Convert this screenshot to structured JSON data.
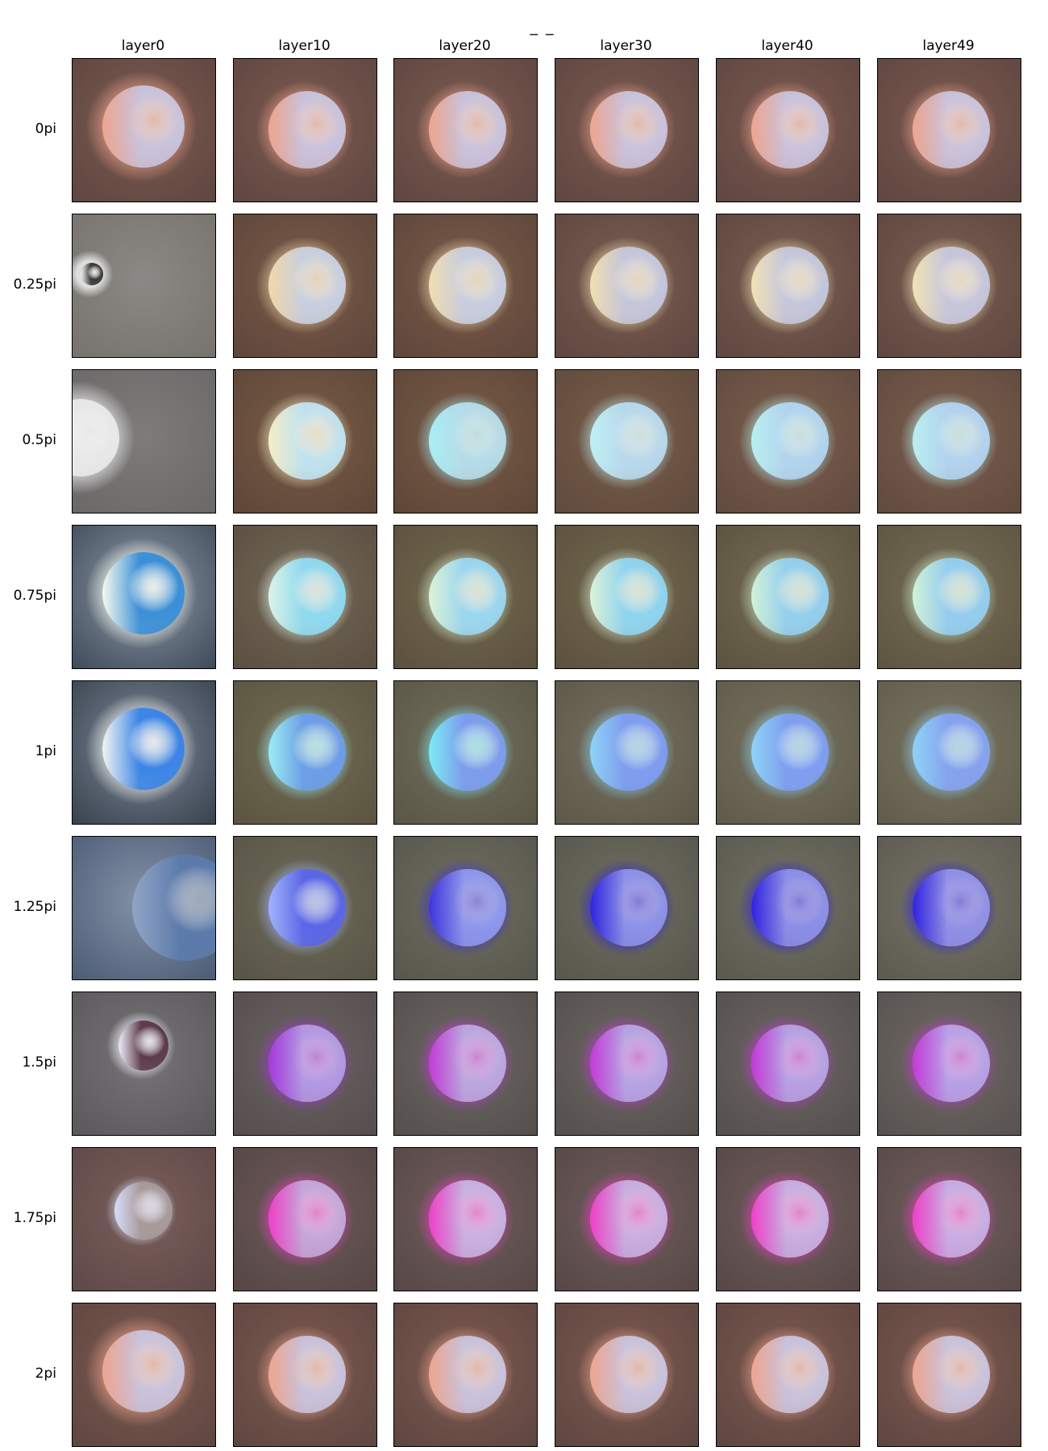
{
  "title": "_ _",
  "columns": [
    "layer0",
    "layer10",
    "layer20",
    "layer30",
    "layer40",
    "layer49"
  ],
  "rows": [
    "0pi",
    "0.25pi",
    "0.5pi",
    "0.75pi",
    "1pi",
    "1.25pi",
    "1.5pi",
    "1.75pi",
    "2pi"
  ],
  "panels": [
    [
      {
        "bg": "#7d5a52",
        "sphere": "#c9c3dc",
        "rim": "#f0a48c",
        "bgEdge": "#5e463f"
      },
      {
        "bg": "#7d5a52",
        "sphere": "#c9c3dc",
        "rim": "#f0a48c",
        "bgEdge": "#5e463f"
      },
      {
        "bg": "#7d5a52",
        "sphere": "#c9c3dc",
        "rim": "#f0a48c",
        "bgEdge": "#5e463f"
      },
      {
        "bg": "#7d5a52",
        "sphere": "#c9c3dc",
        "rim": "#f0a48c",
        "bgEdge": "#5e463f"
      },
      {
        "bg": "#7d5a52",
        "sphere": "#c9c3dc",
        "rim": "#f0a48c",
        "bgEdge": "#5e463f"
      },
      {
        "bg": "#7d5a52",
        "sphere": "#c9c3dc",
        "rim": "#f0a48c",
        "bgEdge": "#5e463f"
      }
    ],
    [
      {
        "bg": "#8b8985",
        "sphere": "#3a3a3a",
        "rim": "#ffffff",
        "bgEdge": "#76736e"
      },
      {
        "bg": "#7a5b4a",
        "sphere": "#c8cfe0",
        "rim": "#f3d9a8",
        "bgEdge": "#5e463a"
      },
      {
        "bg": "#7a5b4a",
        "sphere": "#c8cde0",
        "rim": "#f3dfb0",
        "bgEdge": "#5e463a"
      },
      {
        "bg": "#7a5d50",
        "sphere": "#c4c6dc",
        "rim": "#f4e0b0",
        "bgEdge": "#5e4740"
      },
      {
        "bg": "#7a5d50",
        "sphere": "#c4c6dc",
        "rim": "#f4e4b6",
        "bgEdge": "#5e4740"
      },
      {
        "bg": "#7a5d50",
        "sphere": "#c6c6dc",
        "rim": "#f4e4b6",
        "bgEdge": "#5e4740"
      }
    ],
    [
      {
        "bg": "#7e7c7b",
        "sphere": "#e8e8e8",
        "rim": "#ffffff",
        "bgEdge": "#6a6867"
      },
      {
        "bg": "#7a5c48",
        "sphere": "#bfe2ef",
        "rim": "#f7f0c6",
        "bgEdge": "#5d4637"
      },
      {
        "bg": "#7a5c48",
        "sphere": "#b7dbe8",
        "rim": "#a8f0f5",
        "bgEdge": "#5d4637"
      },
      {
        "bg": "#7a5e4c",
        "sphere": "#b9d8ec",
        "rim": "#bff2f5",
        "bgEdge": "#5f4a3c"
      },
      {
        "bg": "#7b5f4e",
        "sphere": "#b2d4ee",
        "rim": "#baf1f2",
        "bgEdge": "#604a3e"
      },
      {
        "bg": "#7b5f4e",
        "sphere": "#b2d2ee",
        "rim": "#baf1f2",
        "bgEdge": "#604a3e"
      }
    ],
    [
      {
        "bg": "#8b99a8",
        "sphere": "#3a8fd6",
        "rim": "#fffef0",
        "bgEdge": "#3f4a58"
      },
      {
        "bg": "#746858",
        "sphere": "#8fd9ef",
        "rim": "#dff6e8",
        "bgEdge": "#5a4e40"
      },
      {
        "bg": "#746a52",
        "sphere": "#9ad6ef",
        "rim": "#dff4d8",
        "bgEdge": "#5a503c"
      },
      {
        "bg": "#746a52",
        "sphere": "#8fd4ef",
        "rim": "#dff4d8",
        "bgEdge": "#5a503c"
      },
      {
        "bg": "#766c55",
        "sphere": "#94cfee",
        "rim": "#d4f4d8",
        "bgEdge": "#5b523f"
      },
      {
        "bg": "#786e57",
        "sphere": "#94cdee",
        "rim": "#d4f4d8",
        "bgEdge": "#5c5441"
      }
    ],
    [
      {
        "bg": "#7e8b9b",
        "sphere": "#3b84e6",
        "rim": "#fafaf4",
        "bgEdge": "#38404c"
      },
      {
        "bg": "#736c55",
        "sphere": "#6d9de6",
        "rim": "#9df2f5",
        "bgEdge": "#5a5440"
      },
      {
        "bg": "#736f5d",
        "sphere": "#7d9cec",
        "rim": "#7deff7",
        "bgEdge": "#5a5646"
      },
      {
        "bg": "#75705f",
        "sphere": "#7f9cf0",
        "rim": "#8fd6f7",
        "bgEdge": "#5c5748"
      },
      {
        "bg": "#787360",
        "sphere": "#7f9ef0",
        "rim": "#8fd6f7",
        "bgEdge": "#5e5949"
      },
      {
        "bg": "#7a7562",
        "sphere": "#86a2ef",
        "rim": "#8fd6f7",
        "bgEdge": "#605b4b"
      }
    ],
    [
      {
        "bg": "#8492a8",
        "sphere": "#5c7bab",
        "rim": "#93a7c7",
        "bgEdge": "#4b5b74"
      },
      {
        "bg": "#6f6b5a",
        "sphere": "#5a66e6",
        "rim": "#a3b6ff",
        "bgEdge": "#575446"
      },
      {
        "bg": "#6f6e62",
        "sphere": "#8e98ec",
        "rim": "#3c2fdc",
        "bgEdge": "#57564c"
      },
      {
        "bg": "#6f6e62",
        "sphere": "#8e93e8",
        "rim": "#2c1ee0",
        "bgEdge": "#57564c"
      },
      {
        "bg": "#727165",
        "sphere": "#8e90e6",
        "rim": "#2c1ee0",
        "bgEdge": "#59584e"
      },
      {
        "bg": "#767468",
        "sphere": "#9492e6",
        "rim": "#2c1ee0",
        "bgEdge": "#5c5a50"
      }
    ],
    [
      {
        "bg": "#777478",
        "sphere": "#5c3a4a",
        "rim": "#f1f4ff",
        "bgEdge": "#5a575b"
      },
      {
        "bg": "#6c6364",
        "sphere": "#b39ae3",
        "rim": "#a534dc",
        "bgEdge": "#544c4d"
      },
      {
        "bg": "#6c6664",
        "sphere": "#bba8de",
        "rim": "#c436d8",
        "bgEdge": "#544f4d"
      },
      {
        "bg": "#6c6664",
        "sphere": "#b6a5e3",
        "rim": "#c436d8",
        "bgEdge": "#544f4d"
      },
      {
        "bg": "#6c6664",
        "sphere": "#b6a2e3",
        "rim": "#c436d8",
        "bgEdge": "#544f4d"
      },
      {
        "bg": "#706966",
        "sphere": "#b8a2e6",
        "rim": "#c436d8",
        "bgEdge": "#57514f"
      }
    ],
    [
      {
        "bg": "#7a5f5c",
        "sphere": "#a89a9a",
        "rim": "#d9e0ff",
        "bgEdge": "#5e4846"
      },
      {
        "bg": "#6e5b5b",
        "sphere": "#c4a8d8",
        "rim": "#f03cc8",
        "bgEdge": "#554545"
      },
      {
        "bg": "#6f5d5c",
        "sphere": "#c8b2e0",
        "rim": "#f03cc8",
        "bgEdge": "#564746"
      },
      {
        "bg": "#6f5d5c",
        "sphere": "#c8b0e0",
        "rim": "#f03cc8",
        "bgEdge": "#564746"
      },
      {
        "bg": "#6f5d5c",
        "sphere": "#c8b0e0",
        "rim": "#f03cc8",
        "bgEdge": "#564746"
      },
      {
        "bg": "#715f5e",
        "sphere": "#c8aee2",
        "rim": "#f03cc8",
        "bgEdge": "#584848"
      }
    ],
    [
      {
        "bg": "#7d5a52",
        "sphere": "#c9c3dc",
        "rim": "#f0a48c",
        "bgEdge": "#5e463f"
      },
      {
        "bg": "#7d5a52",
        "sphere": "#c9c3dc",
        "rim": "#f0a48c",
        "bgEdge": "#5e463f"
      },
      {
        "bg": "#7d5a52",
        "sphere": "#c9c3dc",
        "rim": "#f0a48c",
        "bgEdge": "#5e463f"
      },
      {
        "bg": "#7d5a52",
        "sphere": "#c9c3dc",
        "rim": "#f0a48c",
        "bgEdge": "#5e463f"
      },
      {
        "bg": "#7d5a52",
        "sphere": "#c9c3dc",
        "rim": "#f0a48c",
        "bgEdge": "#5e463f"
      },
      {
        "bg": "#7d5a52",
        "sphere": "#c9c3dc",
        "rim": "#f0a48c",
        "bgEdge": "#5e463f"
      }
    ]
  ]
}
